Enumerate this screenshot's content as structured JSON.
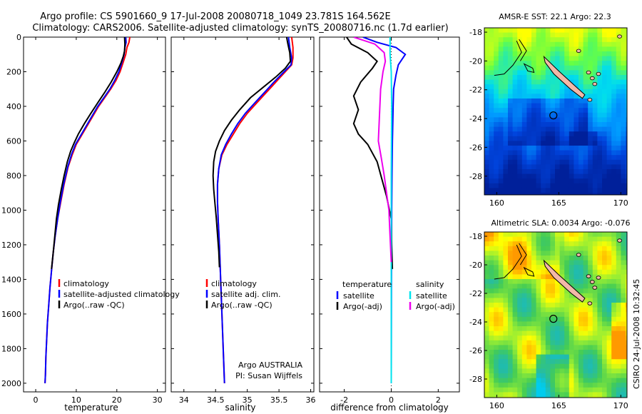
{
  "header": {
    "line1": "Argo profile: CS 5901660_9 17-Jul-2008 20080718_1049 23.781S 164.562E",
    "line2": "Climatology: CARS2006. Satellite-adjusted climatology: synTS_20080716.nc (1.7d earlier)"
  },
  "side_label": "CSIRO 24-Jul-2008 10:32:45",
  "colors": {
    "red": "#ff0000",
    "blue": "#0000ff",
    "black": "#000000",
    "cyan": "#00e5ee",
    "magenta": "#ee00ee"
  },
  "chart_data": [
    {
      "type": "line",
      "xlabel": "temperature",
      "ylabel": "",
      "xlim": [
        -3,
        32
      ],
      "ylim": [
        2050,
        0
      ],
      "y_reversed": true,
      "xticks": [
        "0",
        "10",
        "20",
        "30"
      ],
      "xtick_values": [
        0,
        10,
        20,
        30
      ],
      "yticks": [
        "0",
        "200",
        "400",
        "600",
        "800",
        "1000",
        "1200",
        "1400",
        "1600",
        "1800",
        "2000"
      ],
      "ytick_values": [
        0,
        200,
        400,
        600,
        800,
        1000,
        1200,
        1400,
        1600,
        1800,
        2000
      ],
      "legend": {
        "position": "lower-right",
        "entries": [
          "climatology",
          "satellite-adjusted climatology",
          "Argo(..raw -QC)"
        ]
      },
      "series": [
        {
          "name": "climatology",
          "color": "red",
          "points": [
            [
              23.2,
              0
            ],
            [
              23,
              30
            ],
            [
              22.5,
              60
            ],
            [
              22.2,
              100
            ],
            [
              21.5,
              150
            ],
            [
              20.8,
              200
            ],
            [
              19.8,
              250
            ],
            [
              18.5,
              300
            ],
            [
              17,
              350
            ],
            [
              15.5,
              400
            ],
            [
              14,
              460
            ],
            [
              12.5,
              520
            ],
            [
              11,
              580
            ],
            [
              10,
              620
            ],
            [
              9,
              680
            ],
            [
              8,
              750
            ],
            [
              7,
              850
            ],
            [
              6.2,
              950
            ],
            [
              5.4,
              1050
            ],
            [
              4.8,
              1150
            ],
            [
              4.3,
              1250
            ],
            [
              3.9,
              1350
            ],
            [
              3.5,
              1450
            ],
            [
              3.2,
              1550
            ],
            [
              2.9,
              1650
            ],
            [
              2.7,
              1750
            ],
            [
              2.5,
              1850
            ],
            [
              2.4,
              1950
            ],
            [
              2.3,
              2000
            ]
          ]
        },
        {
          "name": "satellite-adjusted climatology",
          "color": "blue",
          "points": [
            [
              22.2,
              0
            ],
            [
              22.3,
              30
            ],
            [
              22,
              60
            ],
            [
              21.8,
              100
            ],
            [
              21.2,
              150
            ],
            [
              20.5,
              200
            ],
            [
              19.5,
              250
            ],
            [
              18.3,
              300
            ],
            [
              16.8,
              350
            ],
            [
              15.3,
              400
            ],
            [
              13.8,
              460
            ],
            [
              12.3,
              520
            ],
            [
              10.8,
              580
            ],
            [
              9.8,
              620
            ],
            [
              8.8,
              680
            ],
            [
              7.9,
              750
            ],
            [
              6.9,
              850
            ],
            [
              6.1,
              950
            ],
            [
              5.4,
              1050
            ],
            [
              4.8,
              1150
            ],
            [
              4.3,
              1250
            ],
            [
              3.9,
              1350
            ],
            [
              3.5,
              1450
            ],
            [
              3.2,
              1550
            ],
            [
              2.9,
              1650
            ],
            [
              2.7,
              1750
            ],
            [
              2.5,
              1850
            ],
            [
              2.4,
              1950
            ],
            [
              2.3,
              2000
            ]
          ]
        },
        {
          "name": "Argo(..raw -QC)",
          "color": "black",
          "points": [
            [
              21.9,
              0
            ],
            [
              22,
              40
            ],
            [
              21.9,
              80
            ],
            [
              21.6,
              110
            ],
            [
              21,
              150
            ],
            [
              20,
              200
            ],
            [
              18.6,
              260
            ],
            [
              17,
              320
            ],
            [
              15.3,
              380
            ],
            [
              13.6,
              440
            ],
            [
              12,
              500
            ],
            [
              10.5,
              560
            ],
            [
              9.5,
              610
            ],
            [
              8.6,
              660
            ],
            [
              7.8,
              720
            ],
            [
              7,
              800
            ],
            [
              6.3,
              880
            ],
            [
              5.6,
              970
            ],
            [
              5.1,
              1050
            ],
            [
              4.7,
              1150
            ],
            [
              4.3,
              1250
            ],
            [
              3.9,
              1340
            ]
          ]
        }
      ]
    },
    {
      "type": "line",
      "xlabel": "salinity",
      "ylabel": "",
      "xlim": [
        33.8,
        36.05
      ],
      "ylim": [
        2050,
        0
      ],
      "y_reversed": true,
      "xticks": [
        "34",
        "34.5",
        "35",
        "35.5",
        "36"
      ],
      "xtick_values": [
        34,
        34.5,
        35,
        35.5,
        36
      ],
      "legend": {
        "position": "lower-right",
        "entries": [
          "climatology",
          "satellite adj. clim.",
          "Argo(..raw -QC)"
        ]
      },
      "annotation": [
        "Argo AUSTRALIA",
        "PI: Susan Wijffels"
      ],
      "series": [
        {
          "name": "climatology",
          "color": "red",
          "points": [
            [
              35.7,
              0
            ],
            [
              35.72,
              60
            ],
            [
              35.72,
              120
            ],
            [
              35.7,
              160
            ],
            [
              35.6,
              200
            ],
            [
              35.45,
              260
            ],
            [
              35.3,
              320
            ],
            [
              35.15,
              380
            ],
            [
              35,
              440
            ],
            [
              34.88,
              500
            ],
            [
              34.78,
              560
            ],
            [
              34.68,
              620
            ],
            [
              34.6,
              680
            ],
            [
              34.55,
              760
            ],
            [
              34.53,
              850
            ],
            [
              34.53,
              950
            ],
            [
              34.54,
              1050
            ],
            [
              34.56,
              1200
            ],
            [
              34.58,
              1400
            ],
            [
              34.6,
              1600
            ],
            [
              34.62,
              1800
            ],
            [
              34.64,
              2000
            ]
          ]
        },
        {
          "name": "satellite adj. clim.",
          "color": "blue",
          "points": [
            [
              35.65,
              0
            ],
            [
              35.67,
              60
            ],
            [
              35.7,
              120
            ],
            [
              35.69,
              160
            ],
            [
              35.58,
              200
            ],
            [
              35.42,
              260
            ],
            [
              35.27,
              320
            ],
            [
              35.12,
              380
            ],
            [
              34.97,
              440
            ],
            [
              34.85,
              500
            ],
            [
              34.75,
              560
            ],
            [
              34.66,
              620
            ],
            [
              34.59,
              680
            ],
            [
              34.55,
              760
            ],
            [
              34.53,
              850
            ],
            [
              34.53,
              950
            ],
            [
              34.54,
              1050
            ],
            [
              34.56,
              1200
            ],
            [
              34.58,
              1400
            ],
            [
              34.6,
              1600
            ],
            [
              34.62,
              1800
            ],
            [
              34.64,
              2000
            ]
          ]
        },
        {
          "name": "Argo(..raw -QC)",
          "color": "black",
          "points": [
            [
              35.62,
              0
            ],
            [
              35.64,
              40
            ],
            [
              35.67,
              90
            ],
            [
              35.68,
              140
            ],
            [
              35.6,
              180
            ],
            [
              35.45,
              230
            ],
            [
              35.25,
              290
            ],
            [
              35.05,
              350
            ],
            [
              34.88,
              420
            ],
            [
              34.75,
              480
            ],
            [
              34.64,
              540
            ],
            [
              34.56,
              600
            ],
            [
              34.5,
              660
            ],
            [
              34.47,
              720
            ],
            [
              34.46,
              800
            ],
            [
              34.47,
              880
            ],
            [
              34.49,
              960
            ],
            [
              34.51,
              1040
            ],
            [
              34.53,
              1140
            ],
            [
              34.55,
              1240
            ],
            [
              34.56,
              1330
            ]
          ]
        }
      ]
    },
    {
      "type": "line",
      "xlabel": "difference from climatology",
      "ylabel": "",
      "xlim": [
        -3.05,
        2.9
      ],
      "ylim": [
        2050,
        0
      ],
      "y_reversed": true,
      "xticks": [
        "-2",
        "0",
        "2"
      ],
      "xtick_values": [
        -2,
        0,
        2
      ],
      "legend": {
        "position": "lower-right",
        "headers": [
          "temperature",
          "salinity"
        ],
        "entries": [
          "satellite",
          "Argo(-adj)",
          "satellite",
          "Argo(-adj)"
        ]
      },
      "series": [
        {
          "name": "temperature satellite",
          "color": "blue",
          "points": [
            [
              -1.2,
              0
            ],
            [
              -0.6,
              30
            ],
            [
              0.2,
              60
            ],
            [
              0.6,
              100
            ],
            [
              0.3,
              160
            ],
            [
              0.2,
              220
            ],
            [
              0.1,
              300
            ],
            [
              0.08,
              400
            ],
            [
              0.05,
              600
            ],
            [
              0.03,
              800
            ],
            [
              0.02,
              1000
            ],
            [
              0.01,
              1400
            ],
            [
              0,
              2000
            ]
          ]
        },
        {
          "name": "temperature Argo(-adj)",
          "color": "black",
          "points": [
            [
              -1.9,
              0
            ],
            [
              -1.7,
              40
            ],
            [
              -1.0,
              90
            ],
            [
              -0.6,
              140
            ],
            [
              -0.8,
              180
            ],
            [
              -1.3,
              260
            ],
            [
              -1.6,
              340
            ],
            [
              -1.4,
              420
            ],
            [
              -1.6,
              500
            ],
            [
              -1.4,
              560
            ],
            [
              -1.0,
              620
            ],
            [
              -0.6,
              720
            ],
            [
              -0.4,
              820
            ],
            [
              -0.2,
              920
            ],
            [
              0,
              1050
            ],
            [
              0.02,
              1200
            ],
            [
              0.05,
              1340
            ]
          ]
        },
        {
          "name": "salinity satellite",
          "color": "cyan",
          "points": [
            [
              -0.05,
              0
            ],
            [
              -0.05,
              100
            ],
            [
              0,
              200
            ],
            [
              0.02,
              400
            ],
            [
              0,
              800
            ],
            [
              0,
              1200
            ],
            [
              0,
              1600
            ],
            [
              0,
              2000
            ]
          ]
        },
        {
          "name": "salinity Argo(-adj)",
          "color": "magenta",
          "points": [
            [
              -1.6,
              0
            ],
            [
              -0.7,
              40
            ],
            [
              -0.3,
              90
            ],
            [
              -0.25,
              140
            ],
            [
              -0.35,
              200
            ],
            [
              -0.45,
              300
            ],
            [
              -0.5,
              450
            ],
            [
              -0.55,
              600
            ],
            [
              -0.42,
              700
            ],
            [
              -0.3,
              800
            ],
            [
              -0.2,
              900
            ],
            [
              -0.1,
              1000
            ],
            [
              -0.05,
              1150
            ],
            [
              0,
              1300
            ]
          ]
        }
      ]
    },
    {
      "type": "heatmap",
      "title": "AMSR-E SST: 22.1 Argo: 22.3",
      "xlim": [
        159,
        170.5
      ],
      "ylim": [
        -29.3,
        -17.7
      ],
      "xticks": [
        "160",
        "165",
        "170"
      ],
      "xtick_values": [
        160,
        165,
        170
      ],
      "yticks": [
        "-18",
        "-20",
        "-22",
        "-24",
        "-26",
        "-28"
      ],
      "ytick_values": [
        -18,
        -20,
        -22,
        -24,
        -26,
        -28
      ],
      "profile_location": [
        164.562,
        -23.781
      ],
      "palette": [
        "#ffff00",
        "#66ff44",
        "#00ddee",
        "#0099ff",
        "#0044dd",
        "#00209a"
      ]
    },
    {
      "type": "heatmap",
      "title": "Altimetric SLA: 0.0034 Argo: -0.076",
      "xlim": [
        159,
        170.5
      ],
      "ylim": [
        -29.3,
        -17.7
      ],
      "xticks": [
        "160",
        "165",
        "170"
      ],
      "xtick_values": [
        160,
        165,
        170
      ],
      "yticks": [
        "-18",
        "-20",
        "-22",
        "-24",
        "-26",
        "-28"
      ],
      "ytick_values": [
        -18,
        -20,
        -22,
        -24,
        -26,
        -28
      ],
      "profile_location": [
        164.562,
        -23.781
      ],
      "palette": [
        "#ff9900",
        "#ffff00",
        "#99ee33",
        "#44cc55",
        "#22bbaa",
        "#00ccee"
      ]
    }
  ]
}
